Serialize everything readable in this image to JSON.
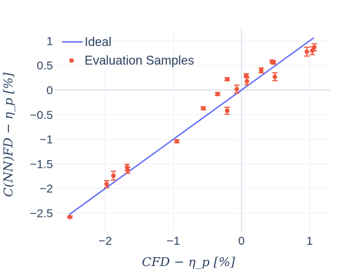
{
  "chart_data": {
    "type": "scatter",
    "xlabel": "CFD − η_p [%]",
    "ylabel": "C(NN)FD − η_p [%]",
    "xlim": [
      -2.75,
      1.25
    ],
    "ylim": [
      -2.75,
      1.25
    ],
    "x_ticks": [
      -2,
      -1,
      0,
      1
    ],
    "y_ticks": [
      -2.5,
      -2,
      -1.5,
      -1,
      -0.5,
      0,
      0.5,
      1
    ],
    "x_tick_labels": [
      "−2",
      "−1",
      "0",
      "1"
    ],
    "y_tick_labels": [
      "−2.5",
      "−2",
      "−1.5",
      "−1",
      "−0.5",
      "0",
      "0.5",
      "1"
    ],
    "grid": true,
    "legend_position": "top-left",
    "series": [
      {
        "name": "Ideal",
        "mode": "line",
        "color": "#636efa",
        "x": [
          -2.53,
          1.06
        ],
        "y": [
          -2.53,
          1.06
        ]
      },
      {
        "name": "Evaluation Samples",
        "mode": "markers",
        "color": "#ef553b",
        "x": [
          -2.52,
          -1.98,
          -1.88,
          -1.68,
          -1.67,
          -0.95,
          -0.56,
          -0.35,
          -0.21,
          -0.21,
          -0.07,
          0.07,
          0.08,
          0.29,
          0.45,
          0.47,
          0.49,
          0.96,
          1.04,
          1.07
        ],
        "y": [
          -2.58,
          -1.91,
          -1.74,
          -1.57,
          -1.63,
          -1.04,
          -0.37,
          -0.08,
          0.22,
          -0.42,
          0.02,
          0.3,
          0.18,
          0.4,
          0.58,
          0.56,
          0.27,
          0.78,
          0.8,
          0.87
        ],
        "error": [
          0.02,
          0.07,
          0.09,
          0.06,
          0.06,
          0.03,
          0.03,
          0.03,
          0.03,
          0.07,
          0.08,
          0.03,
          0.07,
          0.05,
          0.03,
          0.03,
          0.08,
          0.09,
          0.08,
          0.07
        ]
      }
    ]
  }
}
